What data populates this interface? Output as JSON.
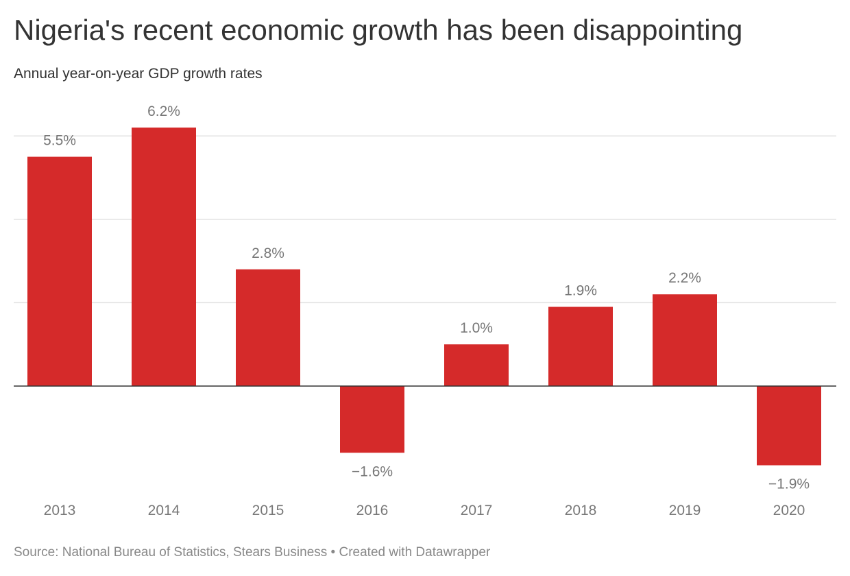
{
  "title": "Nigeria's recent economic growth has been disappointing",
  "subtitle": "Annual year-on-year GDP growth rates",
  "source": "Source: National Bureau of Statistics, Stears Business • Created with Datawrapper",
  "colors": {
    "bar": "#d52a2a",
    "grid": "#e2e2e2",
    "baseline": "#333333",
    "label": "#777777"
  },
  "chart_data": {
    "type": "bar",
    "categories": [
      "2013",
      "2014",
      "2015",
      "2016",
      "2017",
      "2018",
      "2019",
      "2020"
    ],
    "values": [
      5.5,
      6.2,
      2.8,
      -1.6,
      1.0,
      1.9,
      2.2,
      -1.9
    ],
    "data_labels": [
      "5.5%",
      "6.2%",
      "2.8%",
      "−1.6%",
      "1.0%",
      "1.9%",
      "2.2%",
      "−1.9%"
    ],
    "gridlines": [
      2,
      4,
      6
    ],
    "grid": true,
    "ylim": [
      -2.5,
      6.5
    ]
  }
}
